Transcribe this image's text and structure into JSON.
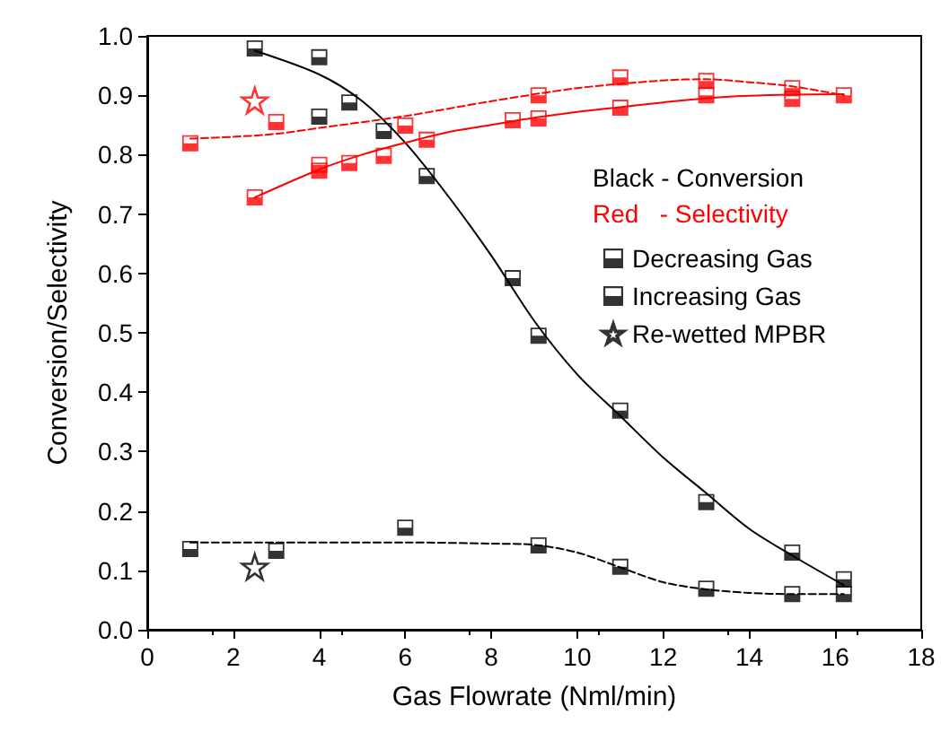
{
  "chart_data": {
    "type": "scatter",
    "xlabel": "Gas Flowrate (Nml/min)",
    "ylabel": "Conversion/Selectivity",
    "xlim": [
      0,
      18
    ],
    "xticks": [
      0,
      2,
      4,
      6,
      8,
      10,
      12,
      14,
      16,
      18
    ],
    "ylim": [
      0,
      1
    ],
    "yticks": [
      {
        "value": 0,
        "label": "0.0"
      },
      {
        "value": 0.1,
        "label": "0.1"
      },
      {
        "value": 0.2,
        "label": "0.2"
      },
      {
        "value": 0.3,
        "label": "0.3"
      },
      {
        "value": 0.4,
        "label": "0.4"
      },
      {
        "value": 0.5,
        "label": "0.5"
      },
      {
        "value": 0.6,
        "label": "0.6"
      },
      {
        "value": 0.7,
        "label": "0.7"
      },
      {
        "value": 0.8,
        "label": "0.8"
      },
      {
        "value": 0.9,
        "label": "0.9"
      },
      {
        "value": 1,
        "label": "1.0"
      }
    ],
    "grid": false,
    "legend": "right",
    "annotations": [
      "Black - Conversion",
      "Red   - Selectivity"
    ],
    "series": [
      {
        "name": "Decreasing Gas",
        "marker": "square",
        "color": "#000000",
        "x": [
          1,
          3,
          6,
          9.1,
          11,
          13,
          15,
          16.2
        ],
        "values": [
          0.136,
          0.133,
          0.172,
          0.142,
          0.106,
          0.069,
          0.06,
          0.06
        ]
      },
      {
        "name": "Increasing Gas",
        "marker": "square",
        "color": "#000000",
        "x": [
          2.5,
          4,
          4,
          4.7,
          5.5,
          6.5,
          8.5,
          9.1,
          11,
          13,
          15,
          16.2
        ],
        "values": [
          0.979,
          0.964,
          0.864,
          0.888,
          0.84,
          0.764,
          0.592,
          0.495,
          0.369,
          0.215,
          0.13,
          0.085
        ]
      },
      {
        "name": "Re-wetted MPBR",
        "marker": "star",
        "color": "#000000",
        "x": [
          2.5
        ],
        "values": [
          0.106
        ]
      },
      {
        "marker": "square",
        "color": "#ff0000",
        "x": [
          1,
          3,
          6,
          9.1,
          11,
          13,
          15
        ],
        "values": [
          0.819,
          0.855,
          0.849,
          0.9,
          0.93,
          0.924,
          0.912
        ]
      },
      {
        "marker": "square",
        "color": "#ff0000",
        "x": [
          2.5,
          4,
          4,
          4.7,
          5.5,
          6.5,
          8.5,
          9.1,
          11,
          13,
          15,
          16.2
        ],
        "values": [
          0.728,
          0.773,
          0.783,
          0.786,
          0.798,
          0.825,
          0.858,
          0.861,
          0.879,
          0.9,
          0.894,
          0.9
        ]
      },
      {
        "marker": "star",
        "color": "#ff0000",
        "x": [
          2.5
        ],
        "values": [
          0.891
        ]
      },
      {
        "type": "line",
        "marker": "none",
        "line_style": "solid",
        "color": "#000000",
        "x": [
          2.5,
          4,
          5,
          6,
          7,
          8,
          9,
          10,
          11,
          12,
          13,
          14,
          15,
          16.2
        ],
        "values": [
          0.975,
          0.935,
          0.89,
          0.82,
          0.73,
          0.63,
          0.52,
          0.43,
          0.36,
          0.29,
          0.23,
          0.17,
          0.125,
          0.075
        ]
      },
      {
        "type": "line",
        "marker": "none",
        "line_style": "dashed",
        "color": "#000000",
        "x": [
          1,
          3,
          6,
          8,
          9,
          10,
          11,
          12,
          13,
          14,
          15,
          16.2
        ],
        "values": [
          0.147,
          0.147,
          0.147,
          0.145,
          0.143,
          0.13,
          0.105,
          0.08,
          0.068,
          0.062,
          0.06,
          0.06
        ]
      },
      {
        "type": "line",
        "marker": "none",
        "line_style": "solid",
        "color": "#ff0000",
        "x": [
          2.5,
          4,
          5,
          6,
          7,
          8,
          9,
          10,
          11,
          12,
          13,
          14,
          15,
          16.2
        ],
        "values": [
          0.728,
          0.775,
          0.8,
          0.82,
          0.838,
          0.85,
          0.862,
          0.872,
          0.88,
          0.888,
          0.895,
          0.899,
          0.901,
          0.902
        ]
      },
      {
        "type": "line",
        "marker": "none",
        "line_style": "dashed",
        "color": "#ff0000",
        "x": [
          1,
          2,
          3,
          4,
          6,
          8,
          10,
          12,
          13,
          14,
          15,
          16.2
        ],
        "values": [
          0.827,
          0.83,
          0.835,
          0.845,
          0.865,
          0.89,
          0.912,
          0.925,
          0.927,
          0.922,
          0.915,
          0.9
        ]
      }
    ]
  }
}
